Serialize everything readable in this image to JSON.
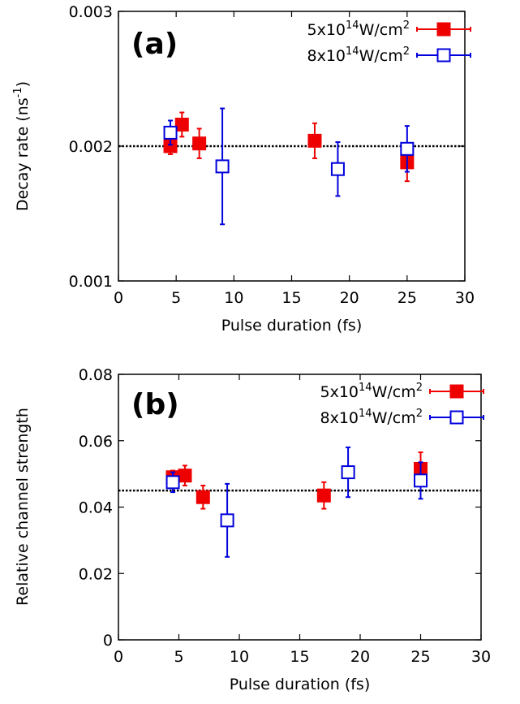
{
  "chart_data": [
    {
      "type": "scatter",
      "panel_label": "(a)",
      "xlabel": "Pulse duration (fs)",
      "ylabel_base": "Decay rate (ns",
      "ylabel_sup": "-1",
      "ylabel_tail": ")",
      "xlim": [
        0,
        30
      ],
      "ylim": [
        0.001,
        0.003
      ],
      "xticks": [
        "0",
        "5",
        "10",
        "15",
        "20",
        "25",
        "30"
      ],
      "yticks": [
        "0.001",
        "0.002",
        "0.003"
      ],
      "reference_line": 0.002,
      "series": [
        {
          "name_base": "5x10",
          "name_sup1": "14",
          "name_mid": "W/cm",
          "name_sup2": "2",
          "marker": "filled-square",
          "color": "#ee0000",
          "points": [
            {
              "x": 4.5,
              "y": 0.002,
              "err": 6e-05
            },
            {
              "x": 5.5,
              "y": 0.00216,
              "err": 9e-05
            },
            {
              "x": 7.0,
              "y": 0.00202,
              "err": 0.00011
            },
            {
              "x": 17.0,
              "y": 0.00204,
              "err": 0.00013
            },
            {
              "x": 25.0,
              "y": 0.00188,
              "err": 0.00014
            }
          ]
        },
        {
          "name_base": "8x10",
          "name_sup1": "14",
          "name_mid": "W/cm",
          "name_sup2": "2",
          "marker": "open-square",
          "color": "#0000dd",
          "points": [
            {
              "x": 4.5,
              "y": 0.0021,
              "err": 9e-05
            },
            {
              "x": 9.0,
              "y": 0.00185,
              "err": 0.00043
            },
            {
              "x": 19.0,
              "y": 0.00183,
              "err": 0.0002
            },
            {
              "x": 25.0,
              "y": 0.00198,
              "err": 0.00017
            }
          ]
        }
      ]
    },
    {
      "type": "scatter",
      "panel_label": "(b)",
      "xlabel": "Pulse duration (fs)",
      "ylabel_base": "Relative channel strength",
      "ylabel_sup": "",
      "ylabel_tail": "",
      "xlim": [
        0,
        30
      ],
      "ylim": [
        0,
        0.08
      ],
      "xticks": [
        "0",
        "5",
        "10",
        "15",
        "20",
        "25",
        "30"
      ],
      "yticks": [
        "0",
        "0.02",
        "0.04",
        "0.06",
        "0.08"
      ],
      "reference_line": 0.045,
      "series": [
        {
          "name_base": "5x10",
          "name_sup1": "14",
          "name_mid": "W/cm",
          "name_sup2": "2",
          "marker": "filled-square",
          "color": "#ee0000",
          "points": [
            {
              "x": 4.5,
              "y": 0.049,
              "err": 0.002
            },
            {
              "x": 5.5,
              "y": 0.0495,
              "err": 0.003
            },
            {
              "x": 7.0,
              "y": 0.043,
              "err": 0.0035
            },
            {
              "x": 17.0,
              "y": 0.0435,
              "err": 0.004
            },
            {
              "x": 25.0,
              "y": 0.0515,
              "err": 0.005
            }
          ]
        },
        {
          "name_base": "8x10",
          "name_sup1": "14",
          "name_mid": "W/cm",
          "name_sup2": "2",
          "marker": "open-square",
          "color": "#0000dd",
          "points": [
            {
              "x": 4.5,
              "y": 0.0475,
              "err": 0.003
            },
            {
              "x": 9.0,
              "y": 0.036,
              "err": 0.011
            },
            {
              "x": 19.0,
              "y": 0.0505,
              "err": 0.0075
            },
            {
              "x": 25.0,
              "y": 0.048,
              "err": 0.0055
            }
          ]
        }
      ]
    }
  ]
}
